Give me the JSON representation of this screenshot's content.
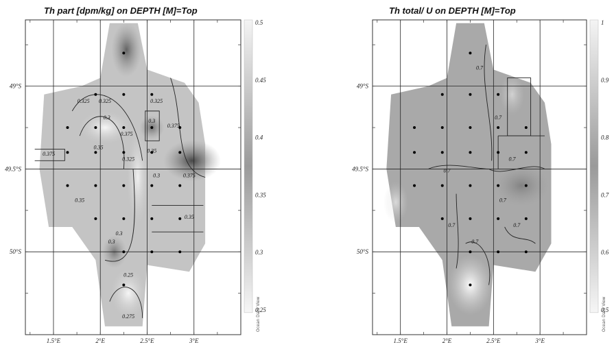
{
  "chart_data": [
    {
      "type": "heatmap",
      "title": "Th part [dpm/kg]  on DEPTH [M]=Top",
      "xlabel": "",
      "ylabel": "",
      "x_ticks": [
        "1.5°E",
        "2°E",
        "2.5°E",
        "3°E"
      ],
      "x_tick_values": [
        1.5,
        2.0,
        2.5,
        3.0
      ],
      "y_ticks": [
        "49°S",
        "49.5°S",
        "50°S"
      ],
      "y_tick_values": [
        -49.0,
        -49.5,
        -50.0
      ],
      "xlim": [
        1.2,
        3.5
      ],
      "ylim": [
        -50.5,
        -48.6
      ],
      "colorbar": {
        "ticks": [
          "0.5",
          "0.45",
          "0.4",
          "0.35",
          "0.3",
          "0.25"
        ],
        "range": [
          0.25,
          0.5
        ]
      },
      "contour_labels": [
        "0.325",
        "0.3",
        "0.325",
        "0.35",
        "0.375",
        "0.375",
        "0.325",
        "0.325",
        "0.3",
        "0.375",
        "0.35",
        "0.35",
        "0.3",
        "0.375",
        "0.35",
        "0.3",
        "0.3",
        "0.25",
        "0.275"
      ],
      "stations": [
        [
          2.25,
          -48.8
        ],
        [
          1.95,
          -49.05
        ],
        [
          2.25,
          -49.05
        ],
        [
          2.55,
          -49.05
        ],
        [
          1.65,
          -49.25
        ],
        [
          1.95,
          -49.25
        ],
        [
          2.25,
          -49.25
        ],
        [
          2.55,
          -49.25
        ],
        [
          2.85,
          -49.25
        ],
        [
          1.65,
          -49.4
        ],
        [
          1.95,
          -49.4
        ],
        [
          2.25,
          -49.4
        ],
        [
          2.55,
          -49.4
        ],
        [
          2.85,
          -49.4
        ],
        [
          1.65,
          -49.6
        ],
        [
          1.95,
          -49.6
        ],
        [
          2.25,
          -49.6
        ],
        [
          2.55,
          -49.6
        ],
        [
          2.85,
          -49.6
        ],
        [
          1.95,
          -49.8
        ],
        [
          2.25,
          -49.8
        ],
        [
          2.55,
          -49.8
        ],
        [
          2.85,
          -49.8
        ],
        [
          2.25,
          -50.0
        ],
        [
          2.55,
          -50.0
        ],
        [
          2.85,
          -50.0
        ],
        [
          2.25,
          -50.2
        ]
      ],
      "watermark": "Ocean Data View"
    },
    {
      "type": "heatmap",
      "title": "Th total/ U on DEPTH [M]=Top",
      "xlabel": "",
      "ylabel": "",
      "x_ticks": [
        "1.5°E",
        "2°E",
        "2.5°E",
        "3°E"
      ],
      "x_tick_values": [
        1.5,
        2.0,
        2.5,
        3.0
      ],
      "y_ticks": [
        "49°S",
        "49.5°S",
        "50°S"
      ],
      "y_tick_values": [
        -49.0,
        -49.5,
        -50.0
      ],
      "xlim": [
        1.2,
        3.5
      ],
      "ylim": [
        -50.5,
        -48.6
      ],
      "colorbar": {
        "ticks": [
          "1",
          "0.9",
          "0.8",
          "0.7",
          "0.6",
          "0.5"
        ],
        "range": [
          0.5,
          1.0
        ]
      },
      "contour_labels": [
        "0.7",
        "0.7",
        "0.7",
        "0.7",
        "0.7",
        "0.7",
        "0.7",
        "0.7"
      ],
      "stations": [
        [
          2.25,
          -48.8
        ],
        [
          1.95,
          -49.05
        ],
        [
          2.25,
          -49.05
        ],
        [
          2.55,
          -49.05
        ],
        [
          1.65,
          -49.25
        ],
        [
          1.95,
          -49.25
        ],
        [
          2.25,
          -49.25
        ],
        [
          2.55,
          -49.25
        ],
        [
          2.85,
          -49.25
        ],
        [
          1.65,
          -49.4
        ],
        [
          1.95,
          -49.4
        ],
        [
          2.25,
          -49.4
        ],
        [
          2.55,
          -49.4
        ],
        [
          2.85,
          -49.4
        ],
        [
          1.65,
          -49.6
        ],
        [
          1.95,
          -49.6
        ],
        [
          2.25,
          -49.6
        ],
        [
          2.55,
          -49.6
        ],
        [
          2.85,
          -49.6
        ],
        [
          1.95,
          -49.8
        ],
        [
          2.25,
          -49.8
        ],
        [
          2.55,
          -49.8
        ],
        [
          2.85,
          -49.8
        ],
        [
          2.25,
          -50.0
        ],
        [
          2.55,
          -50.0
        ],
        [
          2.85,
          -50.0
        ],
        [
          2.25,
          -50.2
        ]
      ],
      "watermark": "Ocean Data View"
    }
  ]
}
